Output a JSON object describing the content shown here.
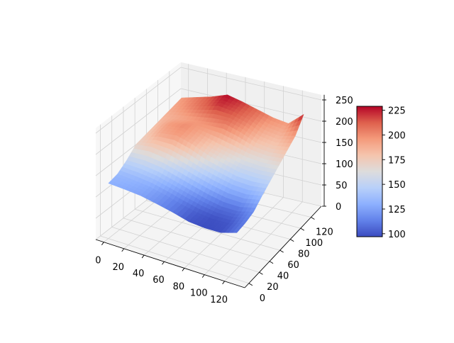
{
  "chart_data": {
    "type": "surface",
    "colormap": "coolwarm",
    "title": "",
    "xlabel": "",
    "ylabel": "",
    "zlabel": "",
    "xlim": [
      -8,
      140
    ],
    "ylim": [
      -8,
      140
    ],
    "zlim": [
      0,
      262
    ],
    "grid": true,
    "x_ticks": [
      "0",
      "20",
      "40",
      "60",
      "80",
      "100",
      "120"
    ],
    "y_ticks": [
      "0",
      "20",
      "40",
      "60",
      "80",
      "100",
      "120"
    ],
    "z_ticks": [
      "0",
      "50",
      "100",
      "150",
      "200",
      "250"
    ],
    "grid_x": [
      0,
      16,
      32,
      48,
      64,
      80,
      96,
      112,
      128
    ],
    "grid_y": [
      0,
      16,
      32,
      48,
      64,
      80,
      96,
      112,
      128
    ],
    "z_values": [
      [
        130,
        128,
        125,
        118,
        110,
        100,
        97,
        98,
        110
      ],
      [
        135,
        132,
        128,
        120,
        110,
        102,
        98,
        100,
        112
      ],
      [
        150,
        150,
        145,
        135,
        125,
        115,
        108,
        108,
        118
      ],
      [
        170,
        175,
        170,
        160,
        148,
        138,
        130,
        128,
        135
      ],
      [
        175,
        190,
        195,
        185,
        170,
        160,
        150,
        148,
        150
      ],
      [
        180,
        195,
        200,
        190,
        180,
        172,
        165,
        162,
        165
      ],
      [
        185,
        190,
        195,
        200,
        205,
        195,
        180,
        175,
        180
      ],
      [
        190,
        200,
        210,
        220,
        215,
        205,
        190,
        185,
        195
      ],
      [
        195,
        205,
        215,
        228,
        220,
        210,
        200,
        195,
        225
      ]
    ],
    "colorbar": {
      "range": [
        97,
        229
      ],
      "ticks": [
        "100",
        "125",
        "150",
        "175",
        "200",
        "225"
      ],
      "position": "right"
    }
  }
}
